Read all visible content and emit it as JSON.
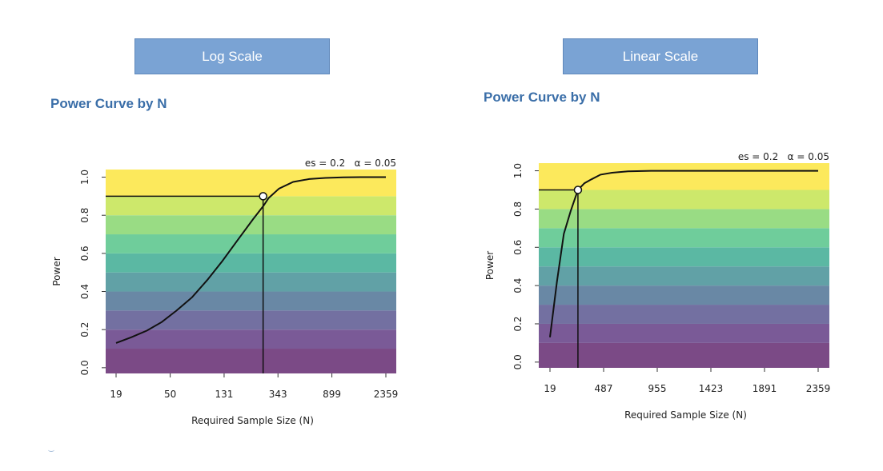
{
  "buttons": {
    "log_label": "Log Scale",
    "linear_label": "Linear Scale"
  },
  "panel_titles": {
    "log": "Power Curve by N",
    "linear": "Power Curve by N"
  },
  "band_colors": [
    "#7b4a86",
    "#7a5a97",
    "#7370a1",
    "#6988a5",
    "#61a1a6",
    "#5bb8a3",
    "#6fcd9b",
    "#99dc84",
    "#cde86b",
    "#fce95c"
  ],
  "chart_data": [
    {
      "type": "line",
      "scale": "log",
      "annotation": "es = 0.2   α = 0.05",
      "xlabel": "Required Sample Size (N)",
      "ylabel": "Power",
      "x_ticks": [
        19,
        50,
        131,
        343,
        899,
        2359
      ],
      "y_ticks": [
        0.0,
        0.2,
        0.4,
        0.6,
        0.8,
        1.0
      ],
      "y_tick_labels": [
        "0.0",
        "0.2",
        "0.4",
        "0.6",
        "0.8",
        "1.0"
      ],
      "ylim": [
        -0.03,
        1.04
      ],
      "x": [
        19,
        25,
        33,
        43,
        56,
        74,
        97,
        127,
        167,
        220,
        265,
        290,
        350,
        450,
        600,
        800,
        1100,
        1500,
        2000,
        2359
      ],
      "y": [
        0.13,
        0.16,
        0.195,
        0.24,
        0.3,
        0.37,
        0.46,
        0.56,
        0.67,
        0.78,
        0.85,
        0.89,
        0.94,
        0.975,
        0.99,
        0.996,
        0.999,
        1.0,
        1.0,
        1.0
      ],
      "marker": {
        "x": 263,
        "y": 0.9
      }
    },
    {
      "type": "line",
      "scale": "linear",
      "annotation": "es = 0.2   α = 0.05",
      "xlabel": "Required Sample Size (N)",
      "ylabel": "Power",
      "x_ticks": [
        19,
        487,
        955,
        1423,
        1891,
        2359
      ],
      "y_ticks": [
        0.0,
        0.2,
        0.4,
        0.6,
        0.8,
        1.0
      ],
      "y_tick_labels": [
        "0.0",
        "0.2",
        "0.4",
        "0.6",
        "0.8",
        "1.0"
      ],
      "ylim": [
        -0.03,
        1.04
      ],
      "x": [
        19,
        80,
        140,
        200,
        263,
        320,
        380,
        460,
        560,
        700,
        900,
        1200,
        1600,
        2000,
        2359
      ],
      "y": [
        0.13,
        0.42,
        0.67,
        0.79,
        0.9,
        0.935,
        0.955,
        0.98,
        0.99,
        0.997,
        1.0,
        1.0,
        1.0,
        1.0,
        1.0
      ],
      "marker": {
        "x": 263,
        "y": 0.9
      }
    }
  ]
}
